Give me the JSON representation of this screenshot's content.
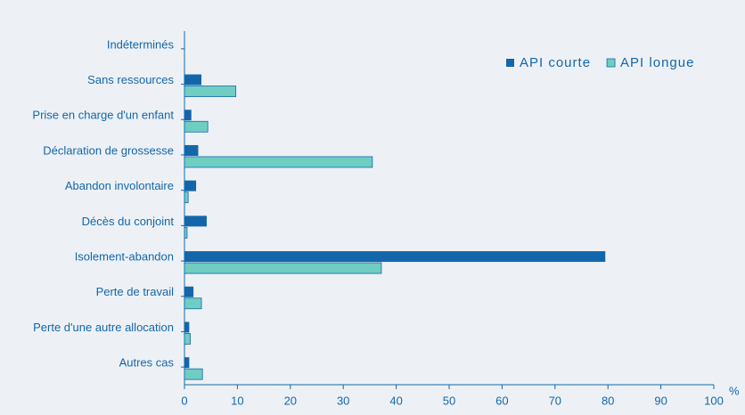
{
  "chart_data": {
    "type": "hbar",
    "categories": [
      "Indéterminés",
      "Sans ressources",
      "Prise en charge d'un enfant",
      "Déclaration de grossesse",
      "Abandon involontaire",
      "Décès du conjoint",
      "Isolement-abandon",
      "Perte de travail",
      "Perte d'une autre allocation",
      "Autres cas"
    ],
    "series": [
      {
        "name": "API courte",
        "color": "#1466ab",
        "values": [
          0,
          3.2,
          1.3,
          2.6,
          2.2,
          4.2,
          79.5,
          1.7,
          0.9,
          0.9
        ]
      },
      {
        "name": "API longue",
        "color": "#6fcdc2",
        "values": [
          0,
          9.7,
          4.4,
          35.5,
          0.7,
          0.5,
          37.2,
          3.2,
          1.1,
          3.4
        ]
      }
    ],
    "xlim": [
      0,
      100
    ],
    "xticks": [
      0,
      10,
      20,
      30,
      40,
      50,
      60,
      70,
      80,
      90,
      100
    ],
    "xlabel": "%",
    "legend": "top-right"
  }
}
